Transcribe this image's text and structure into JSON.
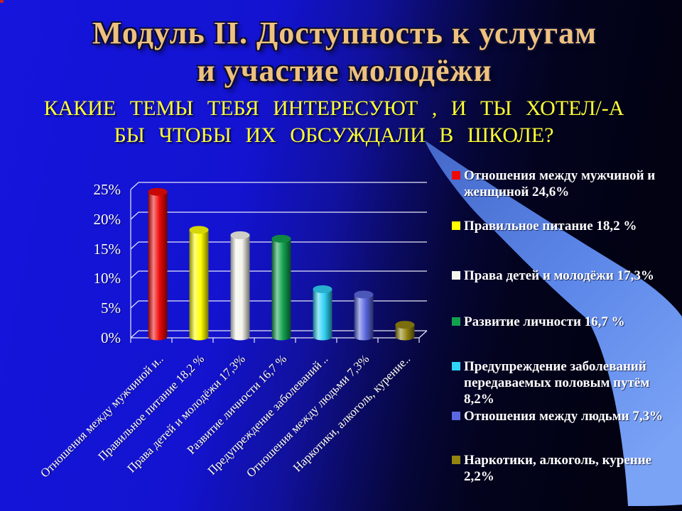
{
  "slide": {
    "title_line1": "Модуль II. Доступность к услугам",
    "title_line2": "и участие молодёжи",
    "subtitle_line1": "КАКИЕ ТЕМЫ ТЕБЯ ИНТЕРЕСУЮТ , И ТЫ ХОТЕЛ/-А",
    "subtitle_line2": "БЫ ЧТОБЫ ИХ ОБСУЖДАЛИ В ШКОЛЕ?"
  },
  "colors": {
    "title_text": "#eec17e",
    "subtitle_text": "#ffff35",
    "background_bright_blue": "#1414d2",
    "background_dark_navy": "#02020f",
    "swoosh_light_blue": "#5b86e8",
    "gridline": "#e8e8f8",
    "axis_text": "#ffffff"
  },
  "chart_data": {
    "type": "bar",
    "bar_style": "cylinder-3d",
    "title": "КАКИЕ ТЕМЫ ТЕБЯ ИНТЕРЕСУЮТ, И ТЫ ХОТЕЛ/-А БЫ ЧТОБЫ ИХ ОБСУЖДАЛИ В ШКОЛЕ?",
    "categories": [
      "Отношения между мужчиной и женщиной",
      "Правильное питание",
      "Права детей и молодёжи",
      "Развитие личности",
      "Предупреждение заболеваний передаваемых половым путём",
      "Отношения между людьми",
      "Наркотики, алкоголь, курение"
    ],
    "categories_display": [
      "Отношения между мужчиной и..",
      "Правильное питание 18,2 %",
      "Права детей и молодёжи  17,3%",
      "Развитие личности 16,7 %",
      "Предупреждение заболеваний ..",
      "Отношения между людьми 7,3%",
      "Наркотики, алкоголь, курение.."
    ],
    "values": [
      24.6,
      18.2,
      17.3,
      16.7,
      8.2,
      7.3,
      2.2
    ],
    "value_labels": [
      "24,6%",
      "18,2%",
      "17,3%",
      "16,7%",
      "8,2%",
      "7,3%",
      "2,2%"
    ],
    "colors": [
      "#ee0808",
      "#ffff00",
      "#f5f5ec",
      "#12a24e",
      "#30d2f5",
      "#5b68de",
      "#93840f"
    ],
    "xlabel": "",
    "ylabel": "",
    "ylim": [
      0,
      25
    ],
    "yticks_display": [
      "25%",
      "20%",
      "15%",
      "10%",
      "5%",
      "0%"
    ],
    "grid": true,
    "legend_position": "right"
  },
  "legend": {
    "items": [
      {
        "label": "Отношения между мужчиной и\nженщиной  24,6%",
        "color": "#ee0808"
      },
      {
        "label": "Правильное питание 18,2 %",
        "color": "#ffff00"
      },
      {
        "label": "Права детей и молодёжи  17,3%",
        "color": "#f5f5ec"
      },
      {
        "label": "Развитие личности 16,7 %",
        "color": "#12a24e"
      },
      {
        "label": "Предупреждение заболеваний\nпередаваемых половым путём\n8,2%",
        "color": "#30d2f5"
      },
      {
        "label": "Отношения между людьми 7,3%",
        "color": "#5b68de"
      },
      {
        "label": "Наркотики, алкоголь,  курение\n2,2%",
        "color": "#93840f"
      }
    ]
  }
}
